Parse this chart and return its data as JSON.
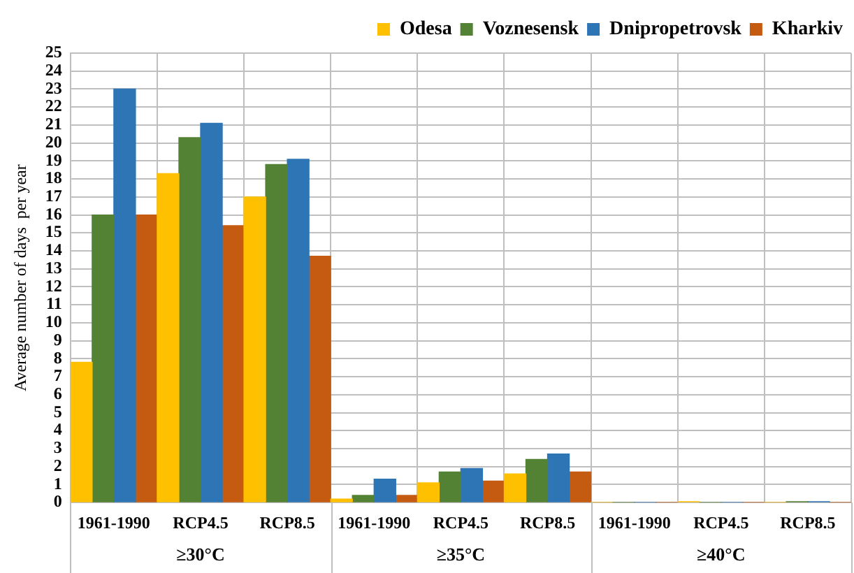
{
  "chart_data": {
    "type": "bar",
    "ylabel": "Average number of days  per year",
    "categories": [
      "1961-1990",
      "RCP4.5",
      "RCP8.5",
      "1961-1990",
      "RCP4.5",
      "RCP8.5",
      "1961-1990",
      "RCP4.5",
      "RCP8.5"
    ],
    "series": [
      {
        "name": "Odesa",
        "color": "#ffc000",
        "values": [
          7.8,
          18.3,
          17,
          0.2,
          1.1,
          1.6,
          0,
          0.05,
          0
        ]
      },
      {
        "name": "Voznesensk",
        "color": "#548235",
        "values": [
          16,
          20.3,
          18.8,
          0.4,
          1.7,
          2.4,
          0,
          0,
          0.05
        ]
      },
      {
        "name": "Dnipropetrovsk",
        "color": "#2e75b6",
        "values": [
          23,
          21.1,
          19.1,
          1.3,
          1.9,
          2.7,
          0,
          0,
          0.05
        ]
      },
      {
        "name": "Kharkiv",
        "color": "#c55a11",
        "values": [
          16,
          15.4,
          13.7,
          0.4,
          1.2,
          1.7,
          0,
          0,
          0
        ]
      }
    ],
    "annotations": [
      "≥30°C",
      "≥35°C",
      "≥40°C"
    ],
    "ylim": [
      0,
      25
    ],
    "yticks": [
      0,
      1,
      2,
      3,
      4,
      5,
      6,
      7,
      8,
      9,
      10,
      11,
      12,
      13,
      14,
      15,
      16,
      17,
      18,
      19,
      20,
      21,
      22,
      23,
      24,
      25
    ],
    "grid": true,
    "legend": "top right"
  }
}
